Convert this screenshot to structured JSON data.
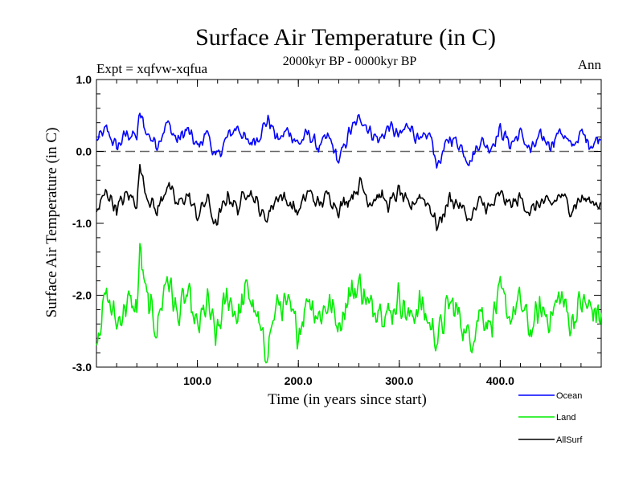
{
  "chart_data": {
    "type": "line",
    "title": "Surface Air Temperature (in C)",
    "subtitle": "2000kyr BP - 0000kyr BP",
    "expt_label": "Expt = xqfvw-xqfua",
    "season_label": "Ann",
    "xlabel": "Time (in years since start)",
    "ylabel": "Surface Air Temperature (in C)",
    "xlim": [
      0,
      500
    ],
    "ylim": [
      -3.0,
      1.0
    ],
    "x_ticks": [
      100,
      200,
      300,
      400
    ],
    "x_tick_labels": [
      "100.0",
      "200.0",
      "300.0",
      "400.0"
    ],
    "y_ticks": [
      1.0,
      0.0,
      -1.0,
      -2.0,
      -3.0
    ],
    "y_tick_labels": [
      "1.0",
      "0.0",
      "-1.0",
      "-2.0",
      "-3.0"
    ],
    "reference_line": 0.0,
    "grid": false,
    "legend_position": "bottom-right, below plot",
    "series": [
      {
        "name": "Ocean",
        "color": "#0000ff",
        "mean": 0.15,
        "range": [
          -0.2,
          0.55
        ],
        "x": [
          0,
          10,
          20,
          30,
          40,
          43,
          50,
          60,
          70,
          80,
          90,
          100,
          110,
          118,
          130,
          140,
          150,
          160,
          170,
          180,
          190,
          200,
          210,
          220,
          230,
          240,
          250,
          262,
          270,
          280,
          290,
          300,
          310,
          320,
          330,
          338,
          350,
          360,
          370,
          380,
          390,
          400,
          410,
          420,
          430,
          440,
          450,
          460,
          470,
          480,
          490,
          500
        ],
        "values": [
          0.15,
          0.3,
          0.05,
          0.25,
          0.2,
          0.52,
          0.25,
          0.1,
          0.4,
          0.15,
          0.3,
          0.05,
          0.28,
          -0.12,
          0.2,
          0.35,
          0.1,
          0.2,
          0.45,
          0.15,
          0.3,
          0.1,
          0.25,
          0.05,
          0.2,
          -0.15,
          0.25,
          0.48,
          0.3,
          0.15,
          0.35,
          0.2,
          0.4,
          0.1,
          0.25,
          -0.2,
          0.2,
          0.1,
          -0.15,
          0.15,
          0.05,
          0.3,
          0.1,
          0.25,
          0.0,
          0.2,
          0.1,
          0.3,
          0.05,
          0.25,
          0.1,
          0.2
        ]
      },
      {
        "name": "Land",
        "color": "#00ee00",
        "mean": -2.2,
        "range": [
          -2.85,
          -1.35
        ],
        "x": [
          0,
          10,
          20,
          30,
          40,
          43,
          50,
          60,
          70,
          80,
          90,
          100,
          110,
          118,
          130,
          140,
          150,
          160,
          167,
          180,
          190,
          200,
          210,
          220,
          230,
          240,
          250,
          262,
          270,
          280,
          290,
          300,
          310,
          320,
          330,
          338,
          350,
          360,
          370,
          380,
          390,
          400,
          410,
          420,
          430,
          440,
          450,
          460,
          470,
          480,
          490,
          500
        ],
        "values": [
          -2.55,
          -2.0,
          -2.4,
          -2.1,
          -2.2,
          -1.38,
          -2.1,
          -2.45,
          -1.7,
          -2.3,
          -2.0,
          -2.5,
          -2.1,
          -2.6,
          -2.0,
          -2.3,
          -1.9,
          -2.4,
          -2.8,
          -2.1,
          -2.2,
          -2.5,
          -2.0,
          -2.3,
          -2.1,
          -2.4,
          -2.0,
          -1.85,
          -2.2,
          -2.1,
          -2.3,
          -2.0,
          -2.35,
          -2.1,
          -2.4,
          -2.6,
          -2.1,
          -2.3,
          -2.65,
          -2.2,
          -2.4,
          -2.0,
          -2.3,
          -2.1,
          -2.5,
          -2.2,
          -2.3,
          -2.0,
          -2.4,
          -2.1,
          -2.2,
          -2.3
        ]
      },
      {
        "name": "AllSurf",
        "color": "#000000",
        "mean": -0.7,
        "range": [
          -1.1,
          -0.2
        ],
        "x": [
          0,
          10,
          20,
          30,
          40,
          43,
          50,
          60,
          70,
          80,
          90,
          100,
          110,
          118,
          130,
          140,
          150,
          160,
          167,
          180,
          190,
          200,
          210,
          220,
          230,
          240,
          250,
          262,
          270,
          280,
          290,
          300,
          310,
          320,
          330,
          338,
          350,
          360,
          370,
          380,
          390,
          400,
          410,
          420,
          430,
          440,
          450,
          460,
          470,
          480,
          490,
          500
        ],
        "values": [
          -0.85,
          -0.55,
          -0.8,
          -0.6,
          -0.7,
          -0.22,
          -0.6,
          -0.85,
          -0.45,
          -0.75,
          -0.6,
          -0.9,
          -0.65,
          -1.05,
          -0.6,
          -0.8,
          -0.5,
          -0.75,
          -0.95,
          -0.6,
          -0.7,
          -0.85,
          -0.55,
          -0.75,
          -0.6,
          -0.8,
          -0.65,
          -0.45,
          -0.7,
          -0.6,
          -0.75,
          -0.55,
          -0.8,
          -0.6,
          -0.75,
          -1.05,
          -0.65,
          -0.75,
          -0.95,
          -0.7,
          -0.8,
          -0.6,
          -0.75,
          -0.65,
          -0.85,
          -0.7,
          -0.75,
          -0.6,
          -0.8,
          -0.65,
          -0.7,
          -0.72
        ]
      }
    ]
  }
}
